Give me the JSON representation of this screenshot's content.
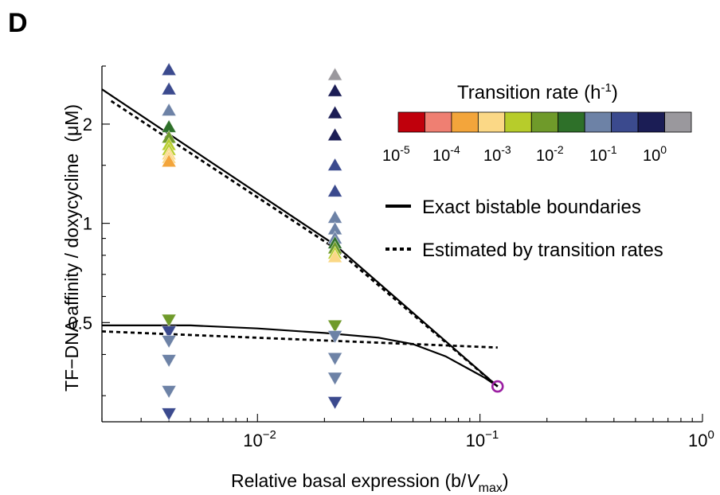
{
  "panel_label": "D",
  "chart_data": {
    "type": "scatter",
    "xlabel": "Relative basal expression (b/V",
    "xlabel_sub": "max",
    "xlabel_end": ")",
    "ylabel": "TF−DNA affinity / doxycycline",
    "ylabel_unit": "(μM)",
    "x_scale": "log",
    "y_scale": "log",
    "xlim": [
      0.002,
      1.0
    ],
    "ylim": [
      0.25,
      3.0
    ],
    "x_ticks": [
      {
        "value": 0.01,
        "base": "10",
        "exp": "−2"
      },
      {
        "value": 0.1,
        "base": "10",
        "exp": "−1"
      },
      {
        "value": 1.0,
        "base": "10",
        "exp": "0"
      }
    ],
    "y_ticks": [
      {
        "value": 0.5,
        "label": "0.5"
      },
      {
        "value": 1.0,
        "label": "1"
      },
      {
        "value": 2.0,
        "label": "2"
      }
    ],
    "colorbar": {
      "title": "Transition rate (h",
      "title_exp": "-1",
      "title_end": ")",
      "colors": [
        "#c0000c",
        "#ef7f72",
        "#f3a53b",
        "#fbd886",
        "#b7cc2b",
        "#6f9a2a",
        "#2e7029",
        "#6d82a6",
        "#3b4a8e",
        "#1b1d55",
        "#9a989d"
      ],
      "labels": [
        {
          "base": "10",
          "exp": "-5"
        },
        {
          "base": "10",
          "exp": "-4"
        },
        {
          "base": "10",
          "exp": "-3"
        },
        {
          "base": "10",
          "exp": "-2"
        },
        {
          "base": "10",
          "exp": "-1"
        },
        {
          "base": "10",
          "exp": "0"
        }
      ]
    },
    "legend": [
      {
        "label": "Exact bistable boundaries",
        "style": "solid"
      },
      {
        "label": "Estimated by transition rates",
        "style": "dotted"
      }
    ],
    "lines": [
      {
        "name": "exact-upper",
        "style": "solid",
        "x": [
          0.002,
          0.0223,
          0.12
        ],
        "y": [
          2.55,
          0.86,
          0.32
        ]
      },
      {
        "name": "estimated-upper",
        "style": "dotted",
        "x": [
          0.0022,
          0.0223,
          0.12
        ],
        "y": [
          2.35,
          0.84,
          0.32
        ]
      },
      {
        "name": "exact-lower",
        "style": "solid",
        "x": [
          0.002,
          0.005,
          0.01,
          0.02,
          0.035,
          0.05,
          0.07,
          0.09,
          0.105,
          0.12
        ],
        "y": [
          0.49,
          0.49,
          0.48,
          0.465,
          0.45,
          0.43,
          0.395,
          0.36,
          0.34,
          0.32
        ]
      },
      {
        "name": "estimated-lower",
        "style": "dotted",
        "x": [
          0.002,
          0.12
        ],
        "y": [
          0.47,
          0.42
        ]
      }
    ],
    "series": [
      {
        "marker": "triangle-up",
        "points": [
          {
            "x": 0.004,
            "y": 2.92,
            "color": "#3b4a8e"
          },
          {
            "x": 0.004,
            "y": 2.55,
            "color": "#3b4a8e"
          },
          {
            "x": 0.004,
            "y": 2.2,
            "color": "#6d82a6"
          },
          {
            "x": 0.004,
            "y": 1.96,
            "color": "#2e7029"
          },
          {
            "x": 0.004,
            "y": 1.82,
            "color": "#6f9a2a"
          },
          {
            "x": 0.004,
            "y": 1.73,
            "color": "#b7cc2b"
          },
          {
            "x": 0.004,
            "y": 1.67,
            "color": "#b7cc2b"
          },
          {
            "x": 0.004,
            "y": 1.62,
            "color": "#fbd886"
          },
          {
            "x": 0.004,
            "y": 1.58,
            "color": "#fbd886"
          },
          {
            "x": 0.004,
            "y": 1.54,
            "color": "#f3a53b"
          },
          {
            "x": 0.0223,
            "y": 2.82,
            "color": "#9a989d"
          },
          {
            "x": 0.0223,
            "y": 2.52,
            "color": "#1b1d55"
          },
          {
            "x": 0.0223,
            "y": 2.16,
            "color": "#1b1d55"
          },
          {
            "x": 0.0223,
            "y": 1.85,
            "color": "#1b1d55"
          },
          {
            "x": 0.0223,
            "y": 1.5,
            "color": "#3b4a8e"
          },
          {
            "x": 0.0223,
            "y": 1.25,
            "color": "#3b4a8e"
          },
          {
            "x": 0.0223,
            "y": 1.04,
            "color": "#6d82a6"
          },
          {
            "x": 0.0223,
            "y": 0.96,
            "color": "#6d82a6"
          },
          {
            "x": 0.0223,
            "y": 0.9,
            "color": "#6d82a6"
          },
          {
            "x": 0.0223,
            "y": 0.87,
            "color": "#2e7029"
          },
          {
            "x": 0.0223,
            "y": 0.84,
            "color": "#6f9a2a"
          },
          {
            "x": 0.0223,
            "y": 0.81,
            "color": "#b7cc2b"
          },
          {
            "x": 0.0223,
            "y": 0.79,
            "color": "#fbd886"
          }
        ]
      },
      {
        "marker": "triangle-down",
        "points": [
          {
            "x": 0.004,
            "y": 0.51,
            "color": "#6f9a2a"
          },
          {
            "x": 0.004,
            "y": 0.47,
            "color": "#3b4a8e"
          },
          {
            "x": 0.004,
            "y": 0.44,
            "color": "#6d82a6"
          },
          {
            "x": 0.004,
            "y": 0.385,
            "color": "#6d82a6"
          },
          {
            "x": 0.004,
            "y": 0.31,
            "color": "#6d82a6"
          },
          {
            "x": 0.004,
            "y": 0.265,
            "color": "#3b4a8e"
          },
          {
            "x": 0.0223,
            "y": 0.49,
            "color": "#6f9a2a"
          },
          {
            "x": 0.0223,
            "y": 0.455,
            "color": "#6d82a6"
          },
          {
            "x": 0.0223,
            "y": 0.39,
            "color": "#6d82a6"
          },
          {
            "x": 0.0223,
            "y": 0.34,
            "color": "#6d82a6"
          },
          {
            "x": 0.0223,
            "y": 0.287,
            "color": "#3b4a8e"
          }
        ]
      }
    ],
    "highlight": {
      "x": 0.12,
      "y": 0.32,
      "color": "#9b1fa2",
      "marker": "open-circle"
    }
  }
}
